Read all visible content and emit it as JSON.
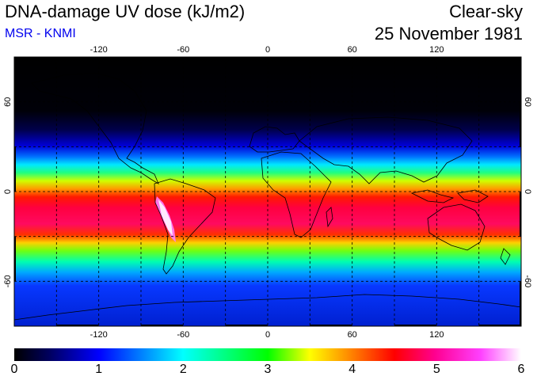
{
  "header": {
    "title": "DNA-damage UV dose (kJ/m2)",
    "subtitle": "MSR - KNMI",
    "condition": "Clear-sky",
    "date": "25 November 1981"
  },
  "map": {
    "lon_labels": [
      "-120",
      "-60",
      "0",
      "60",
      "120"
    ],
    "lat_labels": [
      "60",
      "0",
      "-60"
    ],
    "lon_range": [
      -180,
      180
    ],
    "lat_range": [
      -90,
      90
    ]
  },
  "colorbar": {
    "labels": [
      "0",
      "1",
      "2",
      "3",
      "4",
      "5",
      "6"
    ],
    "range": [
      0,
      6
    ],
    "colors": [
      "#000000",
      "#0000ff",
      "#00ffff",
      "#00ff00",
      "#ffff00",
      "#ff0000",
      "#ff00ff",
      "#ffffff"
    ]
  }
}
